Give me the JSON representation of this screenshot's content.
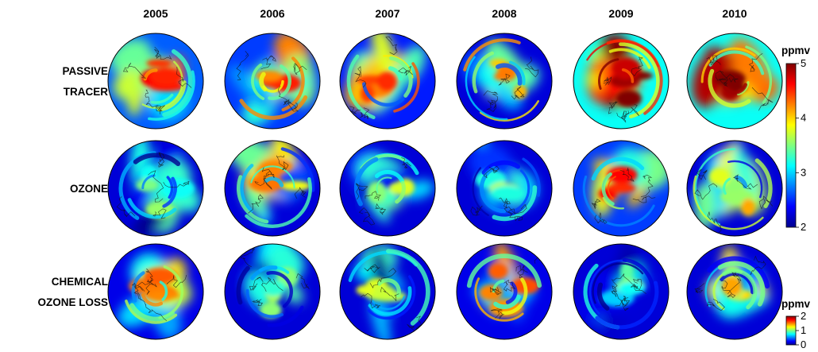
{
  "years": [
    "2005",
    "2006",
    "2007",
    "2008",
    "2009",
    "2010"
  ],
  "rows": [
    {
      "label_lines": [
        "PASSIVE",
        "TRACER"
      ],
      "scale": "upper",
      "levels": [
        3.7,
        3.6,
        3.5,
        3.3,
        4.2,
        4.2
      ]
    },
    {
      "label_lines": [
        "OZONE"
      ],
      "scale": "upper",
      "levels": [
        2.6,
        3.3,
        2.8,
        2.7,
        3.6,
        3.1
      ]
    },
    {
      "label_lines": [
        "CHEMICAL",
        "OZONE LOSS"
      ],
      "scale": "lower",
      "levels": [
        0.9,
        0.4,
        0.5,
        0.9,
        0.35,
        0.75
      ]
    }
  ],
  "colorbars": [
    {
      "id": "upper",
      "unit": "ppmv",
      "min": 2,
      "max": 5,
      "ticks": [
        "5",
        "4",
        "3",
        "2"
      ]
    },
    {
      "id": "lower",
      "unit": "ppmv",
      "min": 0,
      "max": 2,
      "ticks": [
        "2",
        "1",
        "0"
      ]
    }
  ],
  "colormap": [
    "#00008f",
    "#0000ff",
    "#00ffff",
    "#ffff00",
    "#ff0000",
    "#800000"
  ]
}
